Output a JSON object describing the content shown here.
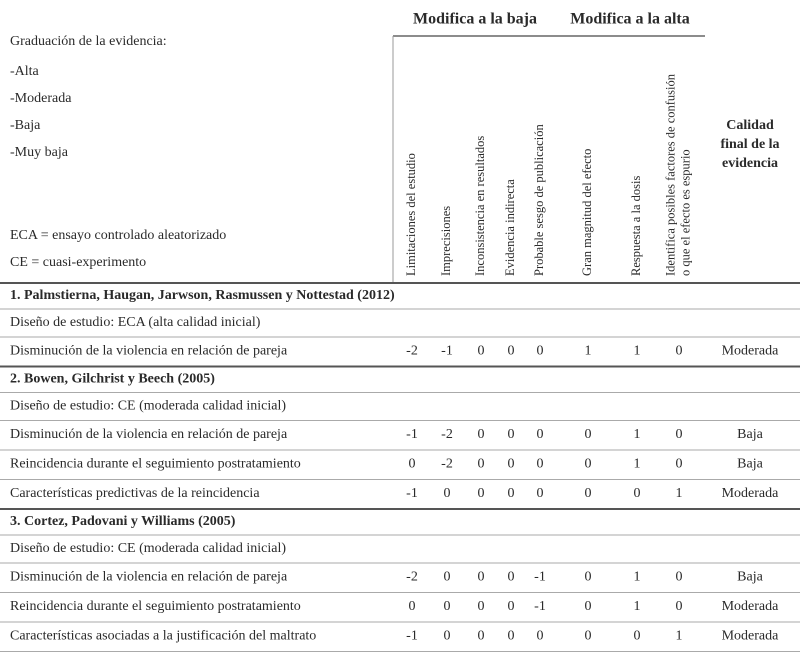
{
  "legend": {
    "title": "Graduación de la evidencia:",
    "levels": [
      "-Alta",
      "-Moderada",
      "-Baja",
      "-Muy baja"
    ],
    "abbreviations": [
      "ECA = ensayo controlado aleatorizado",
      "CE = cuasi-experimento"
    ]
  },
  "groups": [
    "Modifica a la baja",
    "Modifica a la alta"
  ],
  "columns": [
    [
      "Limitaciones del estudio"
    ],
    [
      "Imprecisiones"
    ],
    [
      "Inconsistencia en resultados"
    ],
    [
      "Evidencia indirecta"
    ],
    [
      "Probable sesgo de publicación"
    ],
    [
      "Gran magnitud del efecto"
    ],
    [
      "Respuesta a la dosis"
    ],
    [
      "Identifica posibles factores de confusión",
      "o que el efecto es espurio"
    ]
  ],
  "final_column": [
    "Calidad",
    "final de la",
    "evidencia"
  ],
  "sections": [
    {
      "title": "1. Palmstierna, Haugan, Jarwson, Rasmussen y Nottestad (2012)",
      "design": "Diseño de estudio: ECA (alta calidad inicial)",
      "rows": [
        {
          "label": "Disminución de la violencia en relación de pareja",
          "scores": [
            "-2",
            "-1",
            "0",
            "0",
            "0",
            "1",
            "1",
            "0"
          ],
          "quality": "Moderada"
        }
      ]
    },
    {
      "title": "2. Bowen, Gilchrist y Beech (2005)",
      "design": "Diseño de estudio: CE (moderada calidad inicial)",
      "rows": [
        {
          "label": "Disminución de la violencia en relación de pareja",
          "scores": [
            "-1",
            "-2",
            "0",
            "0",
            "0",
            "0",
            "1",
            "0"
          ],
          "quality": "Baja"
        },
        {
          "label": "Reincidencia durante el seguimiento postratamiento",
          "scores": [
            "0",
            "-2",
            "0",
            "0",
            "0",
            "0",
            "1",
            "0"
          ],
          "quality": "Baja"
        },
        {
          "label": "Características predictivas de la reincidencia",
          "scores": [
            "-1",
            "0",
            "0",
            "0",
            "0",
            "0",
            "0",
            "1"
          ],
          "quality": "Moderada"
        }
      ]
    },
    {
      "title": "3. Cortez, Padovani y Williams (2005)",
      "design": "Diseño de estudio: CE (moderada calidad inicial)",
      "rows": [
        {
          "label": "Disminución de la violencia en relación de pareja",
          "scores": [
            "-2",
            "0",
            "0",
            "0",
            "-1",
            "0",
            "1",
            "0"
          ],
          "quality": "Baja"
        },
        {
          "label": "Reincidencia durante el seguimiento postratamiento",
          "scores": [
            "0",
            "0",
            "0",
            "0",
            "-1",
            "0",
            "1",
            "0"
          ],
          "quality": "Moderada"
        },
        {
          "label": "Características asociadas a la justificación del maltrato",
          "scores": [
            "-1",
            "0",
            "0",
            "0",
            "0",
            "0",
            "0",
            "1"
          ],
          "quality": "Moderada"
        }
      ]
    }
  ]
}
